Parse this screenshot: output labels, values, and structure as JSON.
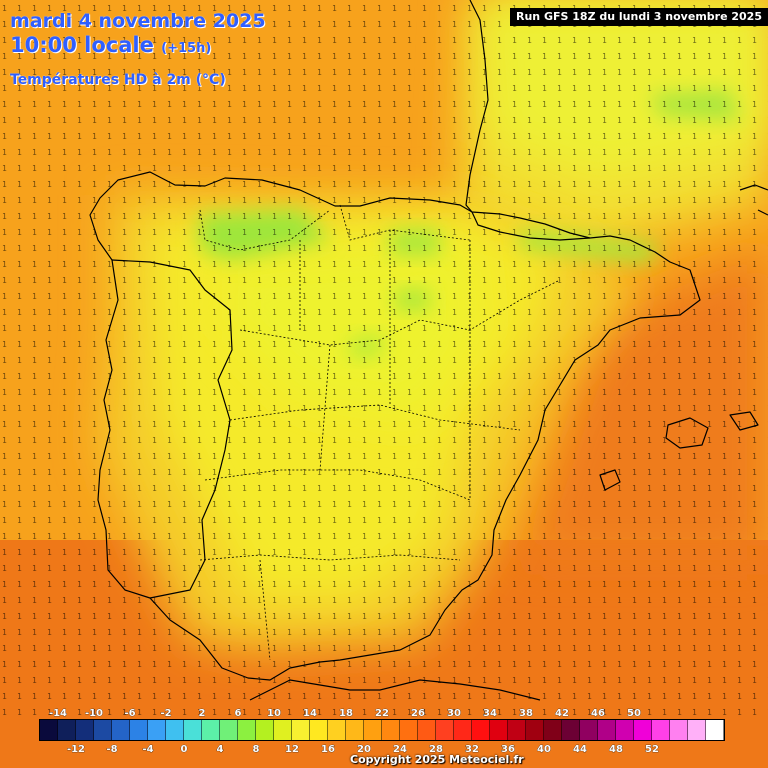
{
  "header": {
    "date": "mardi 4 novembre 2025",
    "time": "10:00 locale",
    "lead": "(+15h)",
    "parameter": "Températures HD à 2m (°C)"
  },
  "run_label": "Run GFS 18Z du lundi 3 novembre 2025",
  "copyright": "Copyright 2025 Meteociel.fr",
  "legend": {
    "colors": [
      "#0a0a3c",
      "#0f1f5a",
      "#132e7a",
      "#1c4aa3",
      "#2464c8",
      "#2c82e6",
      "#3aa0f5",
      "#3fc0f0",
      "#4ae0d8",
      "#5cf0a8",
      "#70f078",
      "#8cf040",
      "#b4f020",
      "#e0f020",
      "#f8f030",
      "#ffe820",
      "#ffd020",
      "#ffb818",
      "#ffa010",
      "#ff8810",
      "#ff7010",
      "#ff5a14",
      "#ff4020",
      "#ff2818",
      "#ff1010",
      "#e00010",
      "#c00014",
      "#a00010",
      "#800018",
      "#6c0034",
      "#900060",
      "#b00088",
      "#d000b0",
      "#f000d8",
      "#ff40e8",
      "#ff80f0",
      "#ffb0f8",
      "#ffffff"
    ],
    "top_labels": [
      "-14",
      "-10",
      "-6",
      "-2",
      "2",
      "6",
      "10",
      "14",
      "18",
      "22",
      "26",
      "30",
      "34",
      "38",
      "42",
      "46",
      "50"
    ],
    "bottom_labels": [
      "-12",
      "-8",
      "-4",
      "0",
      "4",
      "8",
      "12",
      "16",
      "20",
      "24",
      "28",
      "32",
      "36",
      "40",
      "44",
      "48",
      "52"
    ]
  }
}
